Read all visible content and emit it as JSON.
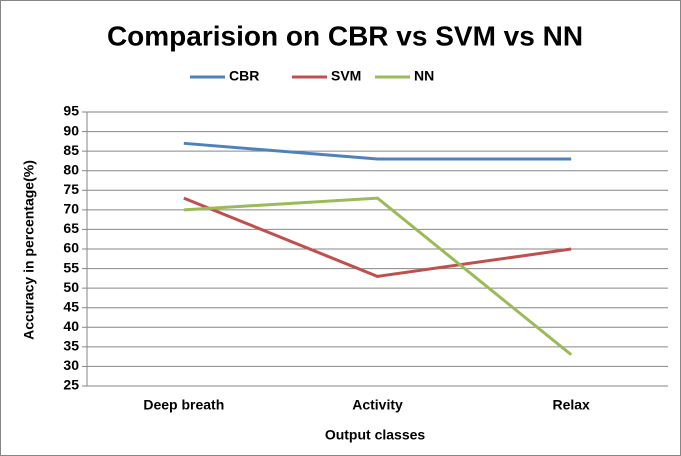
{
  "chart_data": {
    "type": "line",
    "title": "Comparision on CBR vs SVM vs NN",
    "x_label": "Output classes",
    "y_label": "Accuracy in percentage(%)",
    "categories": [
      "Deep breath",
      "Activity",
      "Relax"
    ],
    "series": [
      {
        "name": "CBR",
        "color": "#4f81bd",
        "values": [
          87,
          83,
          83
        ]
      },
      {
        "name": "SVM",
        "color": "#c0504d",
        "values": [
          73,
          53,
          60
        ]
      },
      {
        "name": "NN",
        "color": "#9bbb59",
        "values": [
          70,
          73,
          33
        ]
      }
    ],
    "ylim": [
      25,
      95
    ],
    "yticks": [
      25,
      30,
      35,
      40,
      45,
      50,
      55,
      60,
      65,
      70,
      75,
      80,
      85,
      90,
      95
    ],
    "grid": true,
    "legend": "top"
  }
}
